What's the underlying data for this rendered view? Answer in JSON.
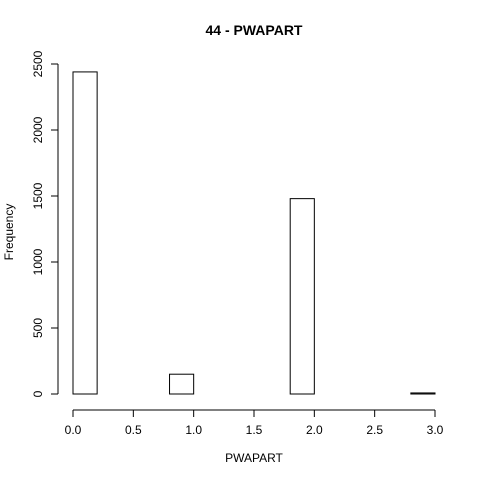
{
  "chart_data": {
    "type": "bar",
    "title": "44 - PWAPART",
    "xlabel": "PWAPART",
    "ylabel": "Frequency",
    "xlim": [
      0,
      3
    ],
    "ylim": [
      0,
      2500
    ],
    "bin_edges": [
      0,
      0.2,
      0.4,
      0.6,
      0.8,
      1.0,
      1.2,
      1.4,
      1.6,
      1.8,
      2.0,
      2.2,
      2.4,
      2.6,
      2.8,
      3.0
    ],
    "values": [
      2440,
      0,
      0,
      0,
      150,
      0,
      0,
      0,
      0,
      1480,
      0,
      0,
      0,
      0,
      8
    ],
    "x_ticks": [
      0,
      0.5,
      1,
      1.5,
      2,
      2.5,
      3
    ],
    "x_tick_labels": [
      "0.0",
      "0.5",
      "1.0",
      "1.5",
      "2.0",
      "2.5",
      "3.0"
    ],
    "y_ticks": [
      0,
      500,
      1000,
      1500,
      2000,
      2500
    ],
    "y_tick_labels": [
      "0",
      "500",
      "1000",
      "1500",
      "2000",
      "2500"
    ],
    "grid": false,
    "legend": "none"
  }
}
